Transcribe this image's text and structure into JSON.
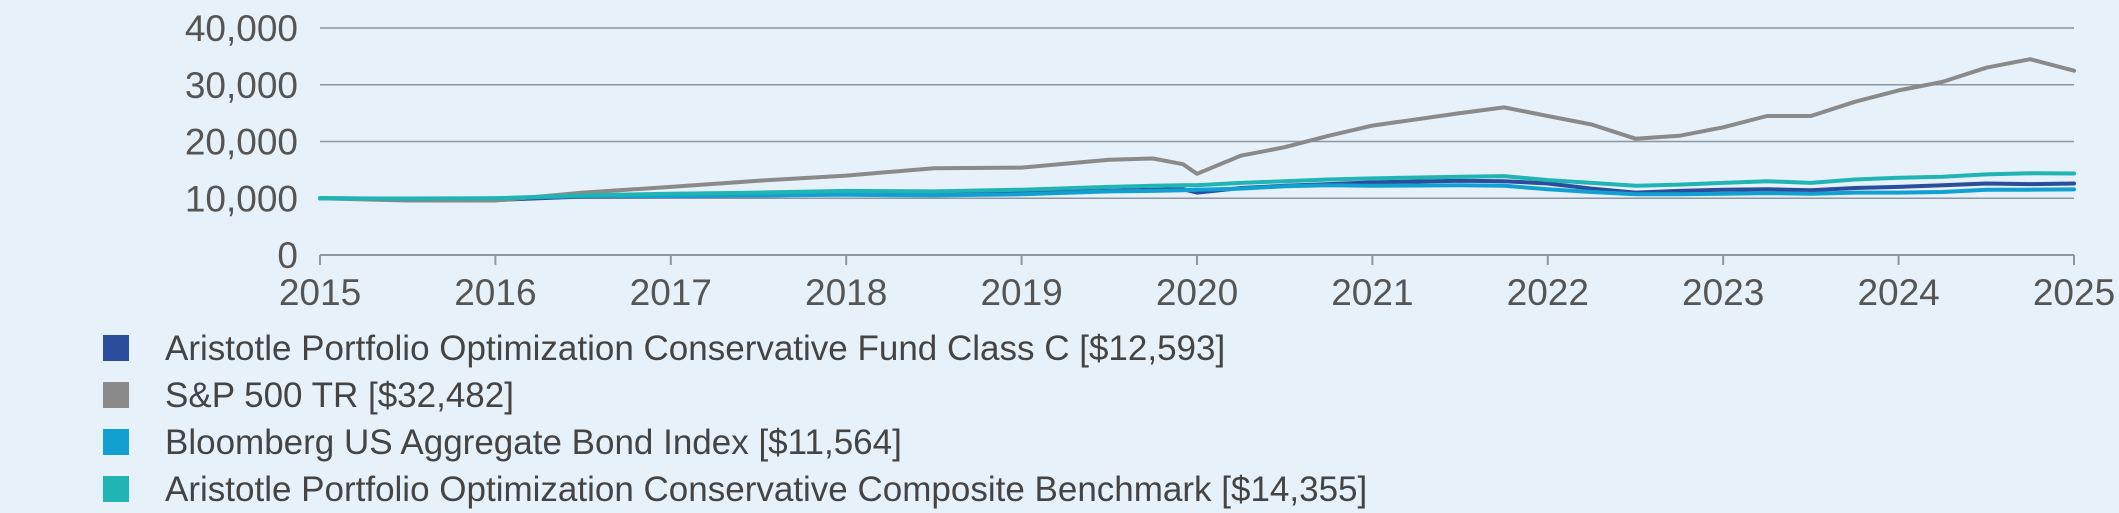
{
  "colors": {
    "background": "#e6f1f9",
    "grid": "#8c96a0",
    "axis": "#8c96a0",
    "text": "#555555"
  },
  "chart_data": {
    "type": "line",
    "title": "",
    "xlabel": "",
    "ylabel": "",
    "xlim": [
      2015,
      2025
    ],
    "ylim": [
      0,
      40000
    ],
    "x_ticks": [
      "2015",
      "2016",
      "2017",
      "2018",
      "2019",
      "2020",
      "2021",
      "2022",
      "2023",
      "2024",
      "2025"
    ],
    "y_ticks": [
      "0",
      "10,000",
      "20,000",
      "30,000",
      "40,000"
    ],
    "grid": true,
    "legend_position": "bottom",
    "x": [
      2015.0,
      2015.5,
      2016.0,
      2016.5,
      2017.0,
      2017.5,
      2018.0,
      2018.5,
      2019.0,
      2019.5,
      2019.75,
      2019.92,
      2020.0,
      2020.25,
      2020.5,
      2020.75,
      2021.0,
      2021.5,
      2021.75,
      2022.0,
      2022.25,
      2022.5,
      2022.75,
      2023.0,
      2023.25,
      2023.5,
      2023.75,
      2024.0,
      2024.25,
      2024.5,
      2024.75,
      2025.0
    ],
    "series": [
      {
        "name": "Aristotle Portfolio Optimization Conservative Fund Class C [$12,593]",
        "color": "#2a4d9c",
        "values": [
          10000,
          9900,
          9700,
          10300,
          10400,
          10500,
          10700,
          10700,
          11000,
          11300,
          11500,
          11600,
          11000,
          11800,
          12200,
          12500,
          12800,
          13100,
          13000,
          12600,
          11700,
          11000,
          11300,
          11500,
          11600,
          11400,
          11800,
          12000,
          12300,
          12600,
          12500,
          12593
        ]
      },
      {
        "name": "S&P 500 TR [$32,482]",
        "color": "#8a8a8a",
        "values": [
          10000,
          9600,
          9600,
          11000,
          12000,
          13100,
          14000,
          15300,
          15400,
          16800,
          17000,
          16000,
          14300,
          17500,
          19000,
          21000,
          22800,
          25000,
          26000,
          24500,
          23000,
          20500,
          21000,
          22500,
          24500,
          24500,
          27000,
          29000,
          30500,
          33000,
          34500,
          32482
        ]
      },
      {
        "name": "Bloomberg US Aggregate Bond Index [$11,564]",
        "color": "#12a0d2",
        "values": [
          10000,
          9900,
          10000,
          10400,
          10400,
          10500,
          10600,
          10500,
          10700,
          11200,
          11300,
          11400,
          11500,
          11700,
          12100,
          12300,
          12200,
          12300,
          12200,
          11600,
          11100,
          10700,
          10700,
          10800,
          10900,
          10800,
          11000,
          11000,
          11100,
          11500,
          11500,
          11564
        ]
      },
      {
        "name": "Aristotle Portfolio Optimization Conservative Composite Benchmark [$14,355]",
        "color": "#20b4b4",
        "values": [
          10000,
          9950,
          10000,
          10500,
          10800,
          11000,
          11300,
          11200,
          11500,
          12000,
          12200,
          12300,
          12300,
          12700,
          13000,
          13300,
          13500,
          13800,
          13900,
          13200,
          12700,
          12200,
          12400,
          12700,
          13000,
          12700,
          13300,
          13600,
          13800,
          14200,
          14400,
          14355
        ]
      }
    ]
  }
}
